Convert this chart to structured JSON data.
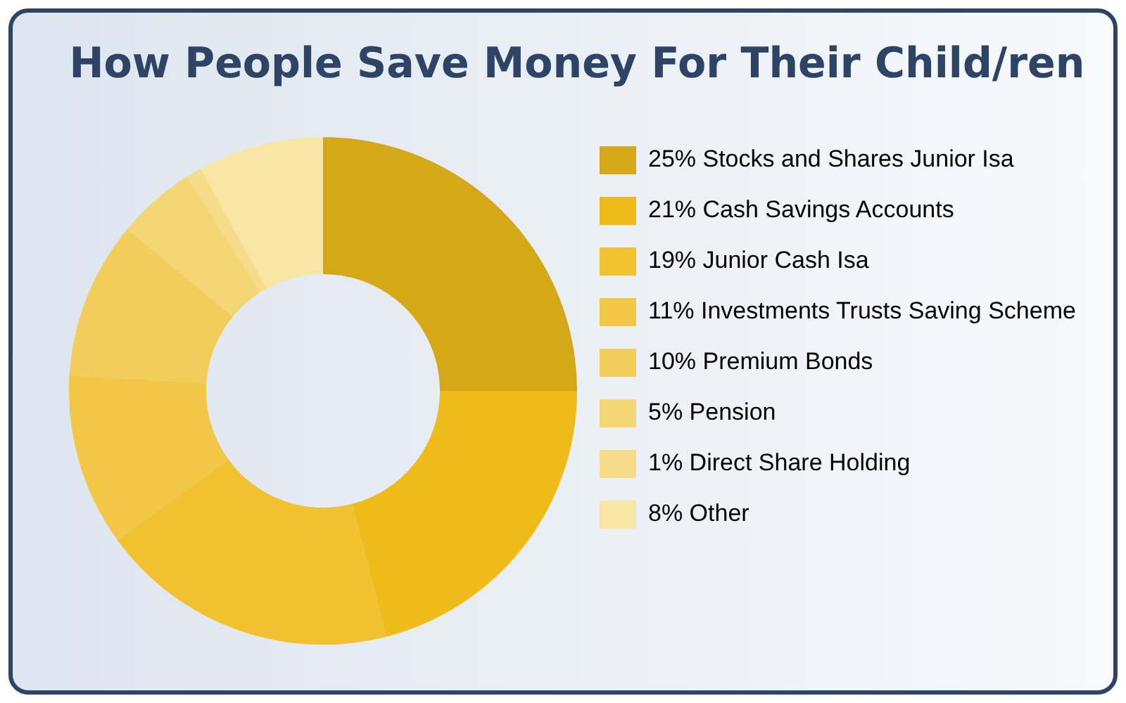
{
  "chart_data": {
    "type": "donut",
    "title": "How People Save Money For Their Child/ren",
    "categories": [
      "Stocks and Shares Junior Isa",
      "Cash Savings Accounts",
      "Junior Cash Isa",
      "Investments Trusts Saving Scheme",
      "Premium Bonds",
      "Pension",
      "Direct Share Holding",
      "Other"
    ],
    "values": [
      25,
      21,
      19,
      11,
      10,
      5,
      1,
      8
    ],
    "value_labels": [
      "25%",
      "21%",
      "19%",
      "11%",
      "10%",
      "5%",
      "1%",
      "8%"
    ],
    "colors": [
      "#d4a817",
      "#efbb18",
      "#f1c12f",
      "#f2c746",
      "#f3cd5a",
      "#f5d674",
      "#f6dc88",
      "#f8e6a6"
    ],
    "legend": "right"
  }
}
